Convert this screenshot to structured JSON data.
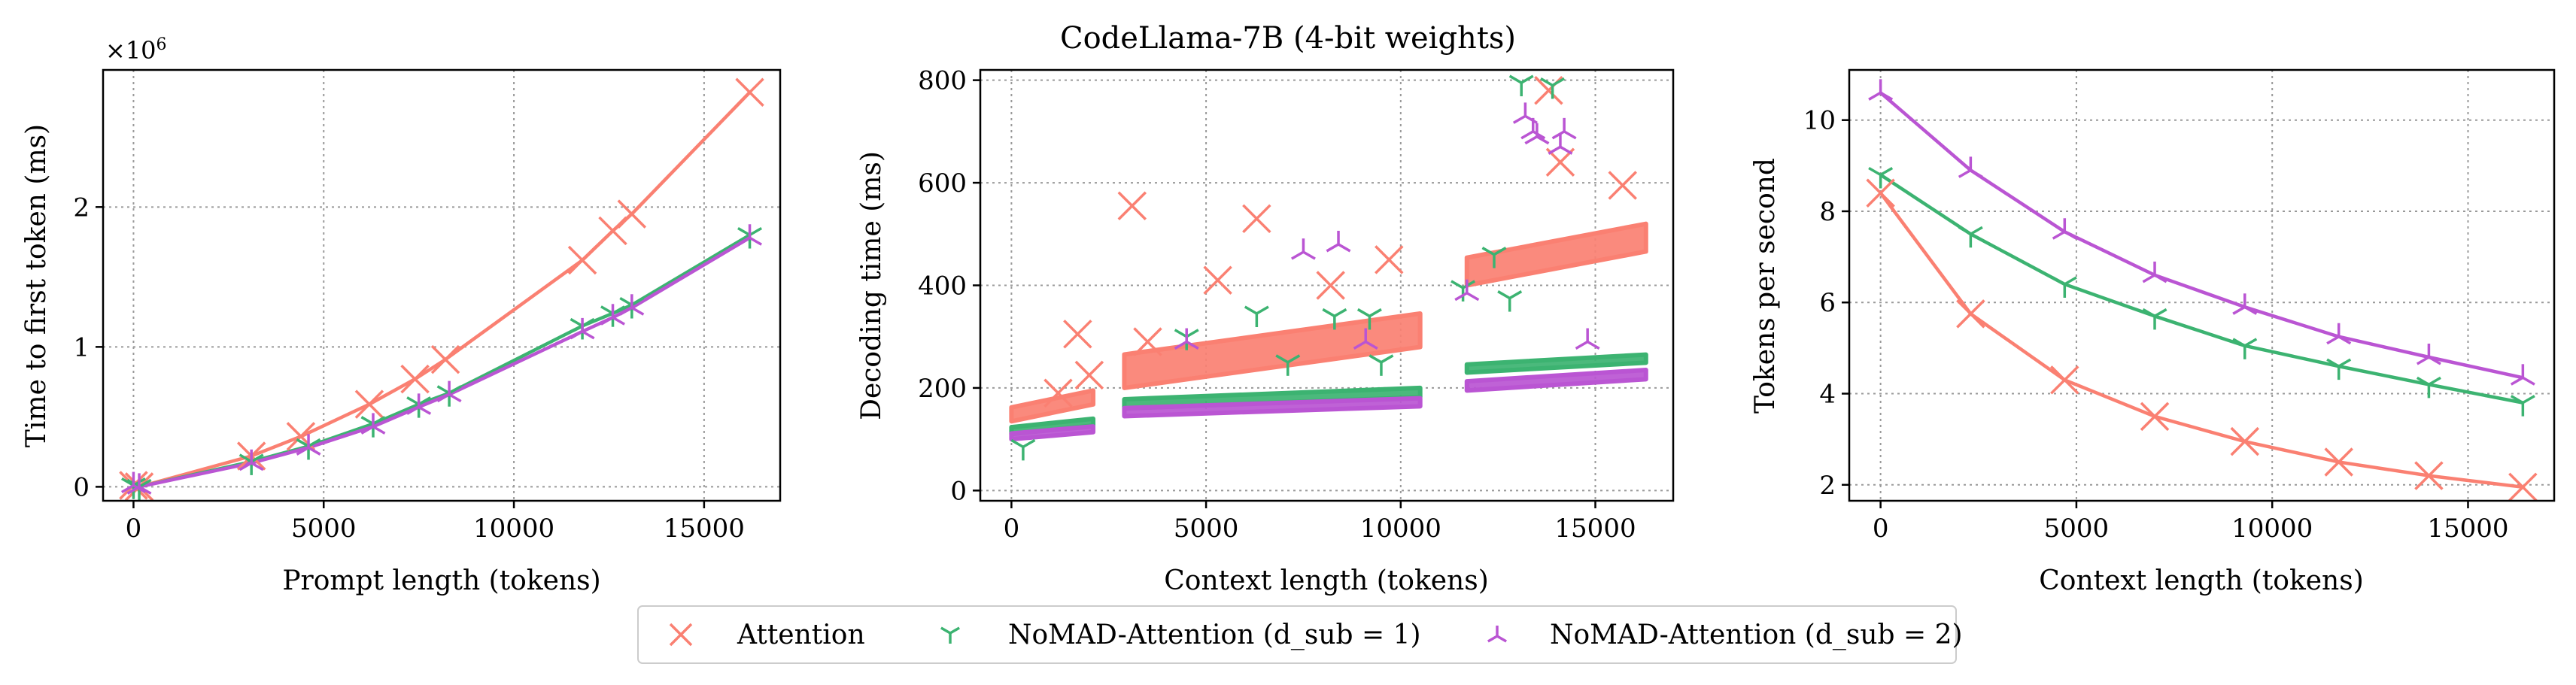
{
  "figure": {
    "title": "CodeLlama-7B (4-bit weights)"
  },
  "colors": {
    "attention": "#fa8072",
    "nomad1": "#3cb371",
    "nomad2": "#ba55d3"
  },
  "legend": {
    "placement": "bottom-center",
    "items": [
      {
        "key": "attention",
        "marker": "x",
        "label": "Attention"
      },
      {
        "key": "nomad1",
        "marker": "tri_down",
        "label": "NoMAD-Attention (d_sub = 1)"
      },
      {
        "key": "nomad2",
        "marker": "tri_up",
        "label": "NoMAD-Attention (d_sub = 2)"
      }
    ]
  },
  "chart_data": [
    {
      "type": "line",
      "xlabel": "Prompt length (tokens)",
      "ylabel": "Time to first token (ms)",
      "y_multiplier_label": "×10^6",
      "xlim": [
        -800,
        17000
      ],
      "ylim": [
        -0.1,
        2.98
      ],
      "xticks": [
        0,
        5000,
        10000,
        15000
      ],
      "yticks": [
        0,
        1,
        2
      ],
      "grid": true,
      "series": [
        {
          "name": "Attention",
          "key": "attention",
          "marker": "x",
          "x": [
            0,
            150,
            3100,
            4400,
            6200,
            7400,
            8200,
            11800,
            12600,
            13100,
            16200
          ],
          "y": [
            0.01,
            0.0,
            0.22,
            0.36,
            0.59,
            0.77,
            0.91,
            1.62,
            1.83,
            1.95,
            2.82
          ]
        },
        {
          "name": "NoMAD-Attention (d_sub = 1)",
          "key": "nomad1",
          "marker": "tri_down",
          "x": [
            0,
            150,
            3100,
            4600,
            6300,
            7500,
            8300,
            11800,
            12600,
            13100,
            16200
          ],
          "y": [
            0.01,
            0.0,
            0.18,
            0.29,
            0.45,
            0.59,
            0.67,
            1.15,
            1.24,
            1.3,
            1.8
          ]
        },
        {
          "name": "NoMAD-Attention (d_sub = 2)",
          "key": "nomad2",
          "marker": "tri_up",
          "x": [
            0,
            150,
            3100,
            4600,
            6300,
            7500,
            8300,
            11800,
            12600,
            13100,
            16200
          ],
          "y": [
            0.01,
            0.0,
            0.17,
            0.28,
            0.43,
            0.57,
            0.66,
            1.11,
            1.21,
            1.28,
            1.78
          ]
        }
      ]
    },
    {
      "type": "scatter",
      "xlabel": "Context length (tokens)",
      "ylabel": "Decoding time (ms)",
      "xlim": [
        -800,
        17000
      ],
      "ylim": [
        -20,
        820
      ],
      "xticks": [
        0,
        5000,
        10000,
        15000
      ],
      "yticks": [
        0,
        200,
        400,
        600,
        800
      ],
      "grid": true,
      "bands": [
        {
          "key": "attention",
          "segments": [
            [
              0,
              2100,
              135,
              195
            ],
            [
              2900,
              10500,
              200,
              345
            ],
            [
              11700,
              16300,
              400,
              520
            ]
          ]
        },
        {
          "key": "nomad1",
          "segments": [
            [
              0,
              2100,
              110,
              140
            ],
            [
              2900,
              10500,
              160,
              200
            ],
            [
              11700,
              16300,
              230,
              265
            ]
          ]
        },
        {
          "key": "nomad2",
          "segments": [
            [
              0,
              2100,
              100,
              125
            ],
            [
              2900,
              10500,
              145,
              180
            ],
            [
              11700,
              16300,
              195,
              235
            ]
          ]
        }
      ],
      "series": [
        {
          "name": "Attention",
          "key": "attention",
          "marker": "x",
          "x": [
            1700,
            3100,
            6300,
            9700,
            8200,
            5300,
            13800,
            14100,
            15700,
            2000,
            1200,
            3500
          ],
          "y": [
            305,
            555,
            530,
            450,
            400,
            410,
            780,
            640,
            595,
            225,
            190,
            290
          ]
        },
        {
          "name": "NoMAD-Attention (d_sub = 1)",
          "key": "nomad1",
          "marker": "tri_down",
          "x": [
            13100,
            13900,
            12400,
            12800,
            8300,
            9200,
            9500,
            4500,
            6300,
            7100,
            300,
            11600
          ],
          "y": [
            795,
            790,
            460,
            375,
            340,
            340,
            250,
            300,
            345,
            250,
            85,
            395
          ]
        },
        {
          "name": "NoMAD-Attention (d_sub = 2)",
          "key": "nomad2",
          "marker": "tri_up",
          "x": [
            13400,
            13200,
            13500,
            14200,
            14100,
            8400,
            7500,
            4500,
            11700,
            14800,
            9100
          ],
          "y": [
            700,
            730,
            690,
            700,
            670,
            480,
            465,
            290,
            385,
            290,
            290
          ]
        }
      ]
    },
    {
      "type": "line",
      "xlabel": "Context length (tokens)",
      "ylabel": "Tokens per second",
      "xlim": [
        -800,
        17200
      ],
      "ylim": [
        1.65,
        11.1
      ],
      "xticks": [
        0,
        5000,
        10000,
        15000
      ],
      "yticks": [
        2,
        4,
        6,
        8,
        10
      ],
      "grid": true,
      "series": [
        {
          "name": "Attention",
          "key": "attention",
          "marker": "x",
          "x": [
            0,
            2300,
            4700,
            7000,
            9300,
            11700,
            14000,
            16400
          ],
          "y": [
            8.4,
            5.75,
            4.3,
            3.5,
            2.95,
            2.5,
            2.2,
            1.95
          ]
        },
        {
          "name": "NoMAD-Attention (d_sub = 1)",
          "key": "nomad1",
          "marker": "tri_down",
          "x": [
            0,
            2300,
            4700,
            7000,
            9300,
            11700,
            14000,
            16400
          ],
          "y": [
            8.8,
            7.5,
            6.4,
            5.7,
            5.05,
            4.6,
            4.2,
            3.8
          ]
        },
        {
          "name": "NoMAD-Attention (d_sub = 2)",
          "key": "nomad2",
          "marker": "tri_up",
          "x": [
            0,
            2300,
            4700,
            7000,
            9300,
            11700,
            14000,
            16400
          ],
          "y": [
            10.6,
            8.9,
            7.55,
            6.6,
            5.9,
            5.25,
            4.8,
            4.35
          ]
        }
      ]
    }
  ]
}
